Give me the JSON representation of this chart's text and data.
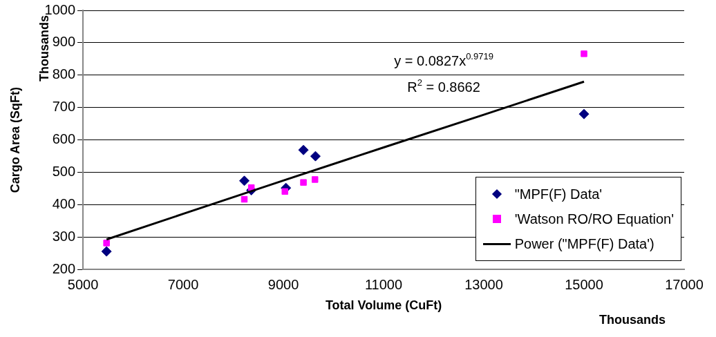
{
  "chart_data": {
    "type": "scatter",
    "xlabel": "Total Volume (CuFt)",
    "ylabel": "Cargo Area (SqFt)",
    "xlim": [
      5000,
      17000
    ],
    "xticks": [
      5000,
      7000,
      9000,
      11000,
      13000,
      15000,
      17000
    ],
    "ylim": [
      200,
      1000
    ],
    "yticks": [
      200,
      300,
      400,
      500,
      600,
      700,
      800,
      900,
      1000
    ],
    "grid": "y",
    "legend": "bottom right",
    "annotations": [
      "y = 0.0827x$^{0.9719}$",
      "R$^{2}$ = 0.8662",
      "Thousands",
      "Thousands"
    ],
    "series": [
      {
        "name": "\"MPF(F) Data'",
        "type": "scatter",
        "marker": "diamond",
        "color": "#000080",
        "x": [
          5470,
          8220,
          8360,
          9050,
          9400,
          9640,
          15000
        ],
        "values": [
          256,
          474,
          445,
          452,
          569,
          550,
          680
        ]
      },
      {
        "name": "'Watson RO/RO Equation'",
        "type": "scatter",
        "marker": "square",
        "color": "#ff00ff",
        "x": [
          5470,
          8220,
          8360,
          9030,
          9400,
          9630,
          15000
        ],
        "values": [
          282,
          417,
          453,
          441,
          469,
          478,
          866
        ]
      },
      {
        "name": "Power (\"MPF(F) Data')",
        "type": "line",
        "marker": "none",
        "color": "#000000",
        "x": [
          5470,
          7000,
          9000,
          11000,
          13000,
          15000
        ],
        "values": [
          293,
          372,
          475,
          577,
          678,
          780
        ]
      }
    ]
  }
}
